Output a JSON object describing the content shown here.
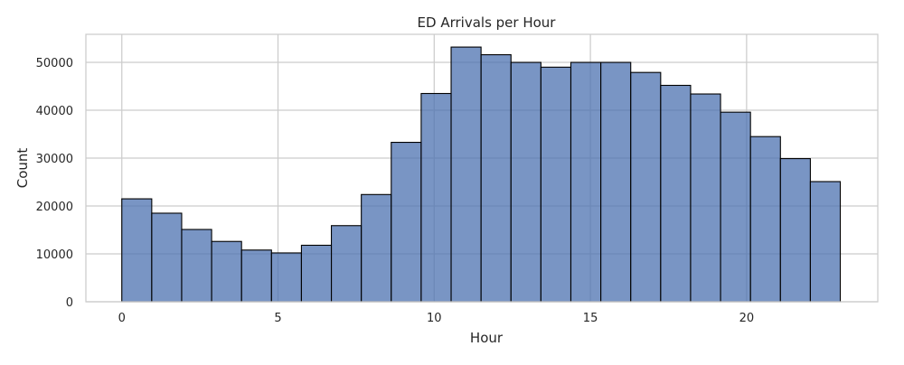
{
  "chart_data": {
    "type": "bar",
    "title": "ED Arrivals per Hour",
    "xlabel": "Hour",
    "ylabel": "Count",
    "bin_width": 0.9583,
    "x_bin_starts": [
      0,
      0.9583,
      1.9167,
      2.875,
      3.8333,
      4.7917,
      5.75,
      6.7083,
      7.6667,
      8.625,
      9.5833,
      10.5417,
      11.5,
      12.4583,
      13.4167,
      14.375,
      15.3333,
      16.2917,
      17.25,
      18.2083,
      19.1667,
      20.125,
      21.0833,
      22.0417
    ],
    "values": [
      21500,
      18500,
      15100,
      12600,
      10800,
      10200,
      11800,
      15900,
      22400,
      33300,
      43500,
      53200,
      51600,
      50000,
      49000,
      50000,
      50000,
      47900,
      45200,
      43400,
      39600,
      34500,
      29900,
      25100
    ],
    "xlim": [
      -1.15,
      24.2
    ],
    "ylim": [
      0,
      55860
    ],
    "xticks": [
      0,
      5,
      10,
      15,
      20
    ],
    "yticks": [
      0,
      10000,
      20000,
      30000,
      40000,
      50000
    ],
    "xtick_labels": [
      "0",
      "5",
      "10",
      "15",
      "20"
    ],
    "ytick_labels": [
      "0",
      "10000",
      "20000",
      "30000",
      "40000",
      "50000"
    ],
    "grid": true,
    "legend": "none",
    "colors": {
      "bar_fill": "#4c72b0",
      "bar_opacity": 0.75,
      "bar_edge": "#000000",
      "grid": "#cccccc",
      "frame": "#cccccc"
    }
  }
}
